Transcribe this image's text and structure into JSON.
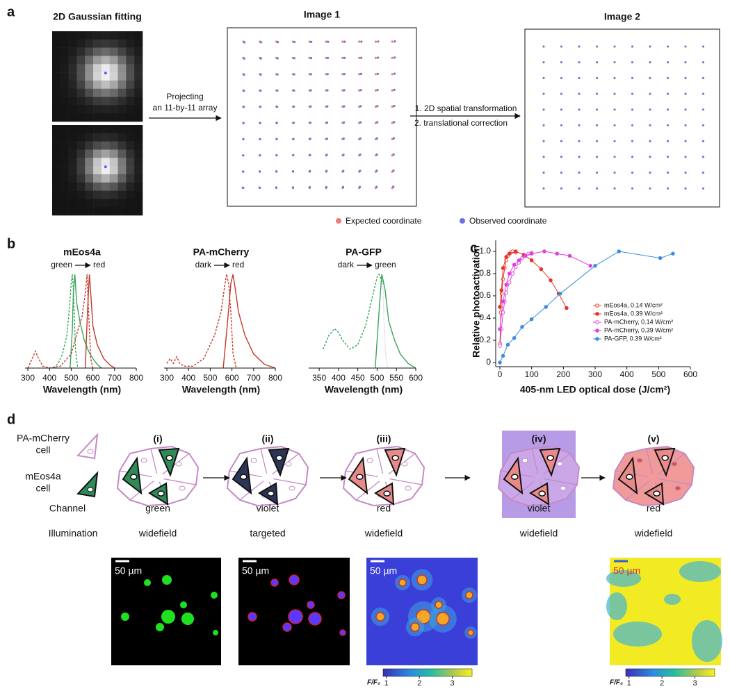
{
  "panel_labels": [
    "a",
    "b",
    "c",
    "d"
  ],
  "panel_a": {
    "gaussian_title": "2D Gaussian fitting",
    "projection_text": [
      "Projecting",
      "an 11-by-11 array"
    ],
    "image1_title": "Image 1",
    "transform_text": [
      "1. 2D spatial transformation",
      "2. translational correction"
    ],
    "image2_title": "Image 2",
    "legend": [
      {
        "label": "Expected coordinate",
        "color": "#f07a7a"
      },
      {
        "label": "Observed coordinate",
        "color": "#6f6fe8"
      }
    ]
  },
  "chart_data": [
    {
      "type": "line",
      "title": "mEos4a",
      "transition": [
        "green",
        "red"
      ],
      "x_label": "Wavelength (nm)",
      "xlim": [
        300,
        800
      ],
      "xticks": [
        300,
        400,
        500,
        600,
        700,
        800
      ],
      "ylim": [
        0,
        1
      ],
      "series": [
        {
          "color": "#3aa55a",
          "style": "dashed",
          "x": [
            420,
            440,
            460,
            480,
            490,
            500,
            505,
            510,
            520,
            530
          ],
          "values": [
            0,
            0.05,
            0.15,
            0.35,
            0.6,
            0.9,
            1.0,
            0.85,
            0.2,
            0
          ]
        },
        {
          "color": "#3aa55a",
          "style": "solid",
          "x": [
            495,
            505,
            510,
            517,
            525,
            540,
            560,
            580,
            600,
            620,
            640
          ],
          "values": [
            0,
            0.4,
            0.8,
            1.0,
            0.7,
            0.5,
            0.3,
            0.18,
            0.1,
            0.04,
            0
          ]
        },
        {
          "color": "#c0392b",
          "style": "dashed",
          "x": [
            300,
            320,
            335,
            350,
            370,
            400,
            450,
            500,
            530,
            550,
            565,
            573,
            580,
            590,
            600
          ],
          "values": [
            0,
            0.1,
            0.18,
            0.1,
            0.02,
            0,
            0.02,
            0.15,
            0.4,
            0.55,
            0.8,
            1.0,
            0.6,
            0.1,
            0
          ]
        },
        {
          "color": "#c0392b",
          "style": "solid",
          "x": [
            565,
            575,
            584,
            590,
            600,
            620,
            630,
            650,
            680,
            700
          ],
          "values": [
            0,
            0.6,
            1.0,
            0.8,
            0.45,
            0.25,
            0.2,
            0.1,
            0.03,
            0
          ]
        }
      ]
    },
    {
      "type": "line",
      "title": "PA-mCherry",
      "transition": [
        "dark",
        "red"
      ],
      "x_label": "Wavelength (nm)",
      "xlim": [
        300,
        800
      ],
      "xticks": [
        300,
        400,
        500,
        600,
        700,
        800
      ],
      "ylim": [
        0,
        1
      ],
      "series": [
        {
          "color": "#c0392b",
          "style": "dashed",
          "x": [
            300,
            315,
            330,
            345,
            360,
            380,
            420,
            470,
            520,
            550,
            565,
            575,
            585,
            595,
            605,
            620
          ],
          "values": [
            0.05,
            0.1,
            0.05,
            0.12,
            0.05,
            0.02,
            0.02,
            0.1,
            0.35,
            0.6,
            0.85,
            1.0,
            0.9,
            0.6,
            0.15,
            0
          ]
        },
        {
          "color": "#c0392b",
          "style": "solid",
          "x": [
            560,
            580,
            595,
            605,
            615,
            630,
            660,
            700,
            750,
            800
          ],
          "values": [
            0,
            0.5,
            0.9,
            1.0,
            0.85,
            0.6,
            0.35,
            0.15,
            0.04,
            0
          ]
        }
      ]
    },
    {
      "type": "line",
      "title": "PA-GFP",
      "transition": [
        "dark",
        "green"
      ],
      "x_label": "Wavelength (nm)",
      "xlim": [
        330,
        600
      ],
      "xticks": [
        350,
        400,
        450,
        500,
        550,
        600
      ],
      "ylim": [
        0,
        1
      ],
      "series": [
        {
          "color": "#3aa55a",
          "style": "dashed",
          "x": [
            360,
            375,
            390,
            400,
            410,
            430,
            450,
            470,
            490,
            500,
            505,
            510,
            515
          ],
          "values": [
            0.2,
            0.35,
            0.42,
            0.38,
            0.3,
            0.2,
            0.25,
            0.45,
            0.8,
            0.97,
            1.0,
            0.95,
            0.9
          ]
        },
        {
          "color": "#bbbbbb",
          "style": "dotted",
          "x": [
            515,
            518,
            522,
            527
          ],
          "values": [
            0.9,
            0.5,
            0.15,
            0
          ]
        },
        {
          "color": "#3aa55a",
          "style": "solid",
          "x": [
            495,
            505,
            512,
            520,
            530,
            545,
            560,
            580,
            600
          ],
          "values": [
            0,
            0.6,
            1.0,
            0.85,
            0.5,
            0.3,
            0.15,
            0.05,
            0
          ]
        }
      ]
    },
    {
      "type": "scatter-line",
      "x_label": "405-nm LED optical dose (J/cm²)",
      "y_label": "Relative photoactivation",
      "xlim": [
        0,
        600
      ],
      "xticks": [
        0,
        100,
        200,
        300,
        400,
        500,
        600
      ],
      "ylim": [
        0,
        1.1
      ],
      "yticks": [
        0,
        0.2,
        0.4,
        0.6,
        0.8,
        {
          "value": 1,
          "label": "1.0"
        }
      ],
      "legend": "center right",
      "series": [
        {
          "name": "mEos4a, 0.14 W/cm²",
          "color": "#e8332a",
          "marker": "open",
          "x": [
            0,
            3,
            6,
            10,
            15,
            20,
            25,
            30,
            35,
            40,
            50
          ],
          "values": [
            0.17,
            0.45,
            0.62,
            0.75,
            0.85,
            0.92,
            0.96,
            0.98,
            0.99,
            1.0,
            0.99
          ]
        },
        {
          "name": "mEos4a, 0.39 W/cm²",
          "color": "#e8332a",
          "marker": "filled",
          "x": [
            0,
            5,
            10,
            20,
            30,
            50,
            75,
            100,
            130,
            160,
            185,
            210
          ],
          "values": [
            0.5,
            0.65,
            0.85,
            0.95,
            0.98,
            1.0,
            0.97,
            0.92,
            0.84,
            0.74,
            0.62,
            0.49
          ]
        },
        {
          "name": "PA-mCherry, 0.14 W/cm²",
          "color": "#e040e0",
          "marker": "open",
          "x": [
            0,
            5,
            10,
            15,
            20,
            30,
            40,
            50,
            60,
            70,
            80,
            90,
            100
          ],
          "values": [
            0.15,
            0.3,
            0.45,
            0.55,
            0.63,
            0.72,
            0.8,
            0.86,
            0.9,
            0.94,
            0.96,
            0.98,
            0.99
          ]
        },
        {
          "name": "PA-mCherry, 0.39 W/cm²",
          "color": "#e040e0",
          "marker": "filled",
          "x": [
            0,
            10,
            20,
            30,
            45,
            60,
            80,
            100,
            140,
            180,
            220,
            285
          ],
          "values": [
            0.3,
            0.55,
            0.7,
            0.8,
            0.88,
            0.92,
            0.96,
            0.98,
            1.0,
            0.98,
            0.96,
            0.87
          ]
        },
        {
          "name": "PA-GFP, 0.39 W/cm²",
          "color": "#3a8de0",
          "marker": "filled",
          "x": [
            0,
            10,
            25,
            45,
            70,
            100,
            145,
            190,
            300,
            375,
            505,
            545
          ],
          "values": [
            0,
            0.06,
            0.16,
            0.22,
            0.32,
            0.39,
            0.5,
            0.62,
            0.87,
            1.0,
            0.94,
            0.98
          ]
        }
      ]
    }
  ],
  "panel_d": {
    "legend": [
      {
        "label": [
          "PA-mCherry",
          "cell"
        ],
        "color": "#c48ac4"
      },
      {
        "label": [
          "mEos4a",
          "cell"
        ],
        "color": "#2e8b57"
      }
    ],
    "stages": [
      "(i)",
      "(ii)",
      "(iii)",
      "(iv)",
      "(v)"
    ],
    "row_labels": [
      "Channel",
      "Illumination"
    ],
    "channel": [
      "green",
      "violet",
      "red",
      "violet",
      "red"
    ],
    "illumination": [
      "widefield",
      "targeted",
      "widefield",
      "widefield",
      "widefield"
    ],
    "images": [
      {
        "scale_bar": "50 µm"
      },
      {
        "scale_bar": "50 µm"
      },
      {
        "scale_bar": "50 µm"
      },
      {
        "scale_bar": "50 µm"
      }
    ],
    "colorbars": [
      {
        "label": "F/F₀",
        "lim": [
          0.9,
          3.6
        ],
        "ticks": [
          1,
          2,
          3
        ]
      },
      {
        "label": "F/F₀",
        "lim": [
          0.9,
          3.6
        ],
        "ticks": [
          1,
          2,
          3
        ]
      }
    ]
  }
}
